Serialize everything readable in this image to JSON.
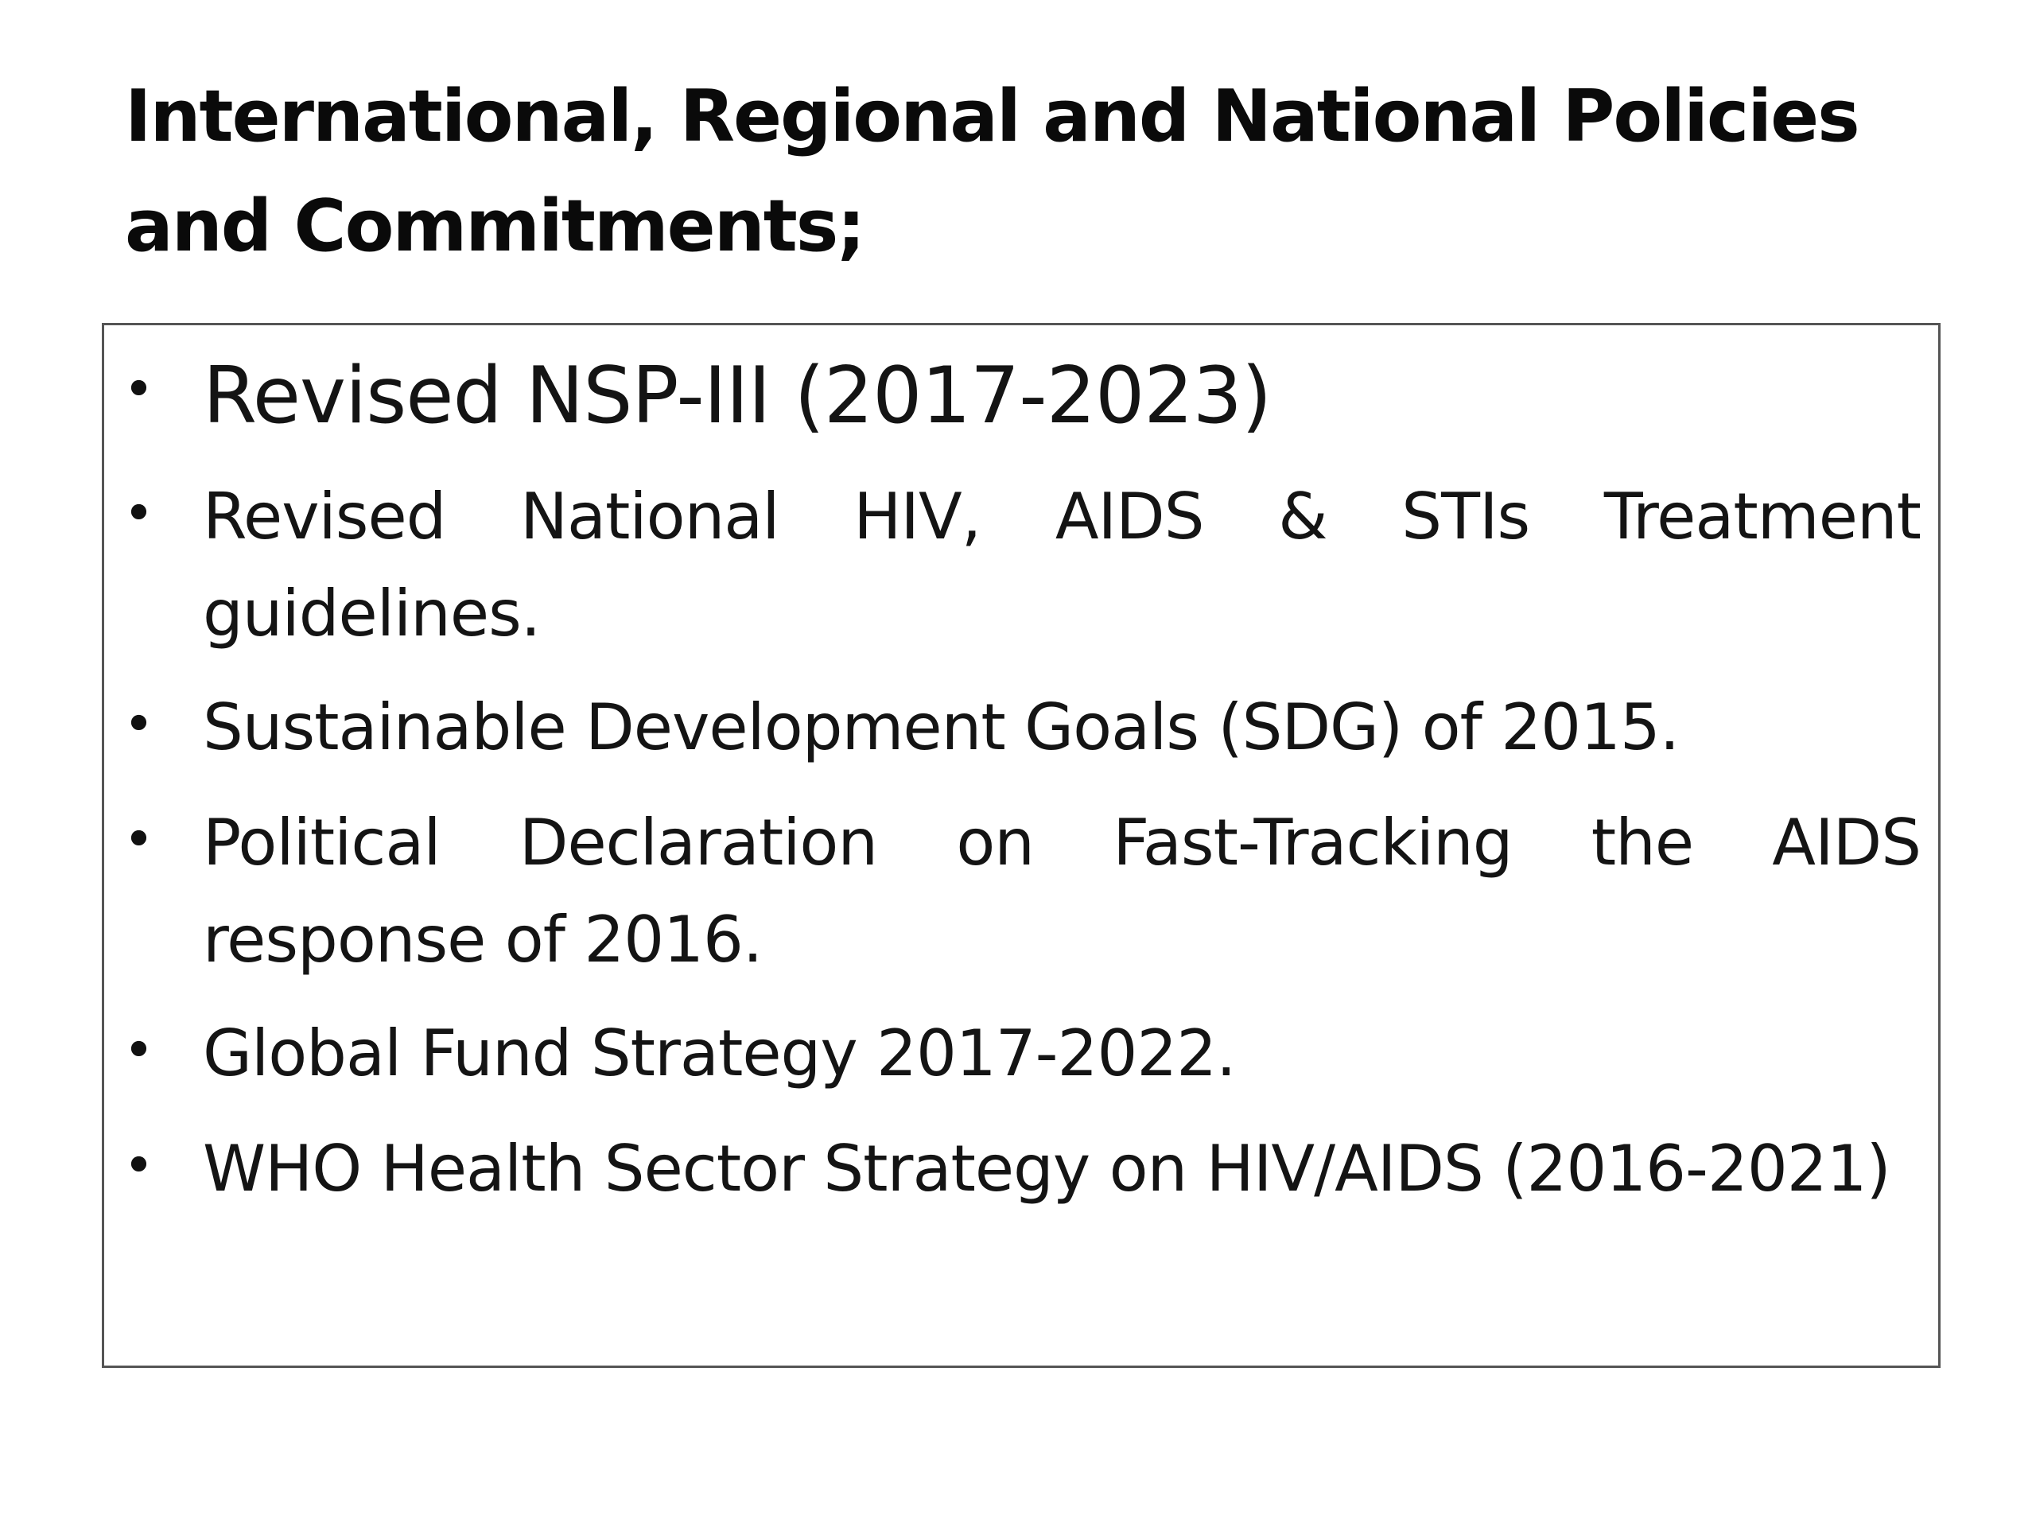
{
  "slide": {
    "title": "International, Regional and National Policies and Commitments;",
    "bullets": [
      "Revised NSP-III (2017-2023)",
      "Revised National HIV, AIDS & STIs Treatment guidelines.",
      "Sustainable Development Goals (SDG) of 2015.",
      "Political Declaration on Fast-Tracking the AIDS response of 2016.",
      "Global Fund Strategy 2017-2022.",
      "WHO Health Sector Strategy on HIV/AIDS (2016-2021)"
    ]
  }
}
